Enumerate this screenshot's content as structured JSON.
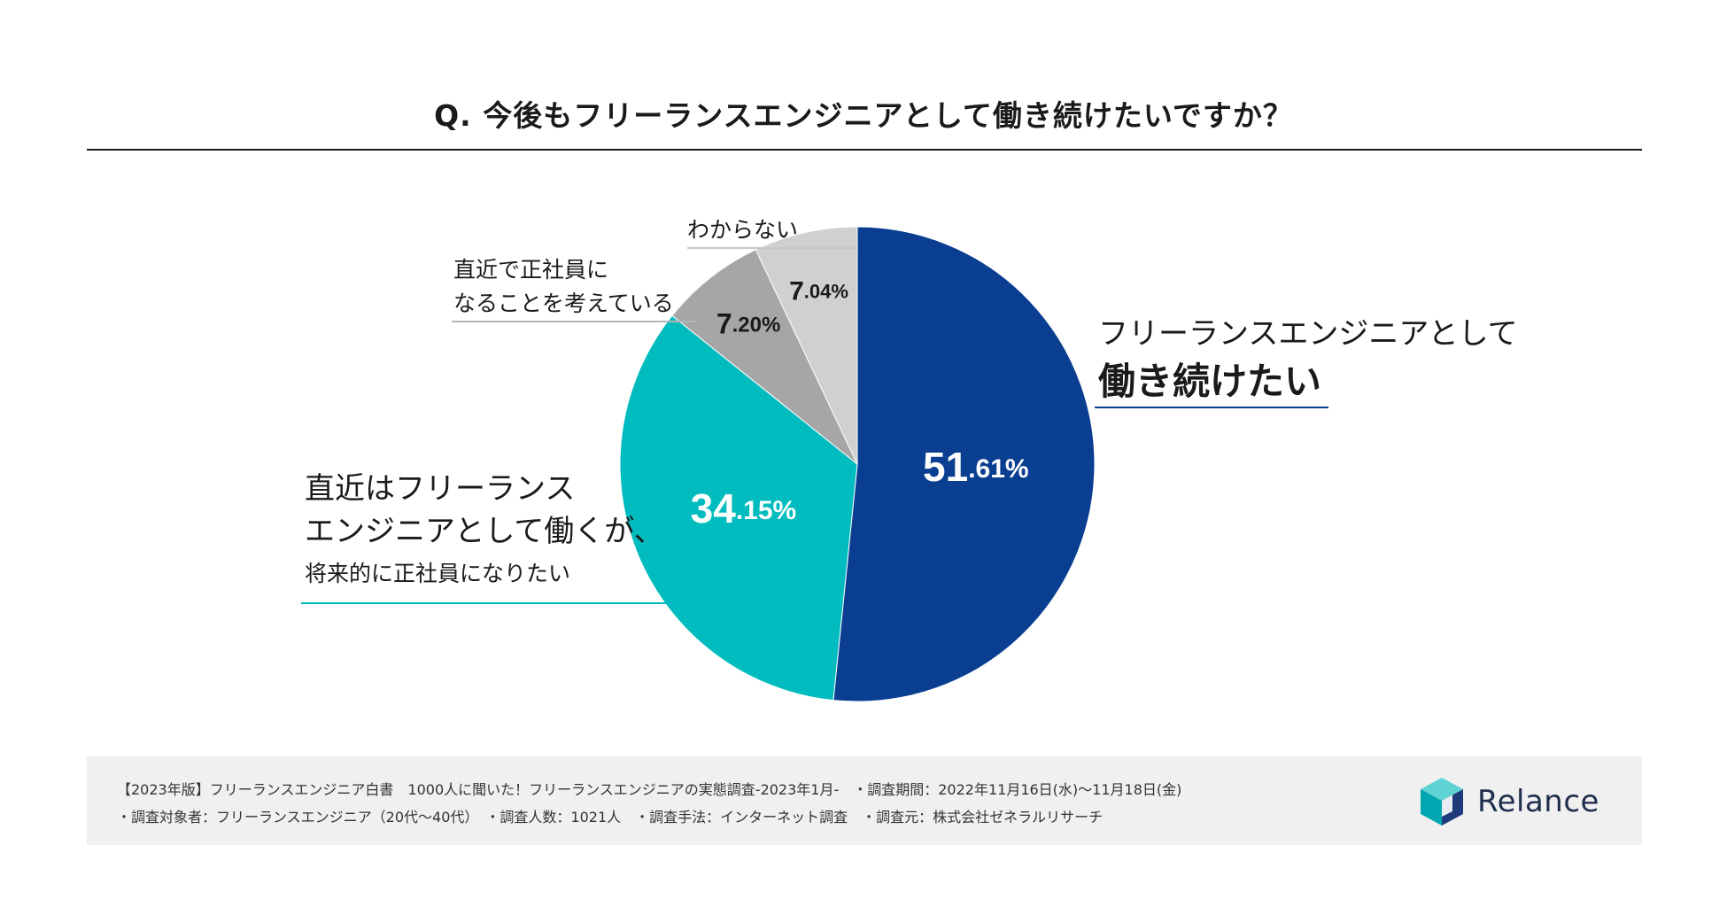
{
  "question": "Q. 今後もフリーランスエンジニアとして働き続けたいですか？",
  "chart_data": {
    "type": "pie",
    "title": "Q. 今後もフリーランスエンジニアとして働き続けたいですか？",
    "slices": [
      {
        "name": "フリーランスエンジニアとして働き続けたい",
        "value": 51.61,
        "value_int": "51",
        "value_dec": ".61%",
        "color": "#0a3e91"
      },
      {
        "name": "直近はフリーランスエンジニアとして働くが、将来的に正社員になりたい",
        "value": 34.15,
        "value_int": "34",
        "value_dec": ".15%",
        "color": "#00bcbf"
      },
      {
        "name": "直近で正社員になることを考えている",
        "value": 7.2,
        "value_int": "7",
        "value_dec": ".20%",
        "color": "#a6a6a6"
      },
      {
        "name": "わからない",
        "value": 7.04,
        "value_int": "7",
        "value_dec": ".04%",
        "color": "#d0d0d0"
      }
    ]
  },
  "labels": {
    "main_line1": "フリーランスエンジニアとして",
    "main_line2": "働き続けたい",
    "cyan_line1": "直近はフリーランス",
    "cyan_line2": "エンジニアとして働くが、",
    "cyan_line3": "将来的に正社員になりたい",
    "gray1_line1": "直近で正社員に",
    "gray1_line2": "なることを考えている",
    "gray2": "わからない"
  },
  "source": {
    "line1": "【2023年版】フリーランスエンジニア白書　1000人に聞いた！フリーランスエンジニアの実態調査-2023年1月-　・調査期間：2022年11月16日(水)〜11月18日(金)",
    "line2": "・調査対象者：フリーランスエンジニア（20代〜40代）　・調査人数：1021人　・調査手法：インターネット調査　・調査元：株式会社ゼネラルリサーチ"
  },
  "logo": {
    "text": "Relance"
  }
}
